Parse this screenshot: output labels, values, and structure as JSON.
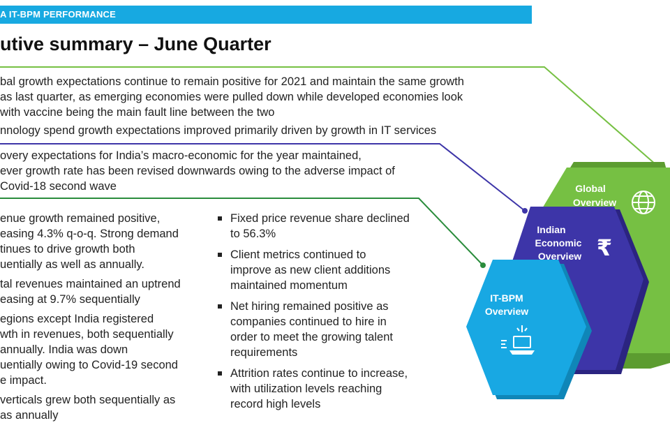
{
  "header": {
    "section": "A IT-BPM PERFORMANCE"
  },
  "title": "utive summary – June Quarter",
  "global_text": [
    "bal growth expectations continue to remain positive for 2021 and maintain the same growth",
    "as last quarter, as emerging economies were pulled down while developed economies look",
    "with vaccine being the main fault line between the two",
    "nnology spend growth expectations improved primarily driven by growth in IT services"
  ],
  "india_text": [
    "overy expectations for India’s macro-economic for the year maintained,",
    "ever growth rate has been revised downwards owing to the adverse impact of",
    "Covid-18 second wave"
  ],
  "itbpm_left": [
    "enue growth remained positive,",
    "easing 4.3% q-o-q. Strong demand",
    "tinues to drive growth both",
    "uentially as well as annually.",
    "tal revenues maintained an uptrend",
    "easing at 9.7% sequentially",
    "egions except India registered",
    "wth in revenues, both sequentially",
    "annually. India was down",
    "uentially owing to Covid-19 second",
    "e impact.",
    "verticals grew both sequentially as",
    "as annually"
  ],
  "itbpm_right": [
    [
      "Fixed price revenue share declined",
      "to 56.3%"
    ],
    [
      "Client metrics continued to",
      "improve as new client additions",
      "maintained momentum"
    ],
    [
      "Net hiring remained positive as",
      "companies continued to hire in",
      "order to meet the growing talent",
      "requirements"
    ],
    [
      "Attrition rates continue to increase,",
      "with utilization levels reaching",
      "record high levels"
    ]
  ],
  "graphic": {
    "global_label": [
      "Global",
      "Overview"
    ],
    "india_label": [
      "Indian",
      "Economic",
      "Overview"
    ],
    "itbpm_label": [
      "IT-BPM",
      "Overview"
    ],
    "global_color": "#76c043",
    "india_color": "#3d35a8",
    "itbpm_color": "#18a8e3",
    "global_icon": "globe-icon",
    "india_icon": "rupee-icon",
    "itbpm_icon": "laptop-icon"
  }
}
